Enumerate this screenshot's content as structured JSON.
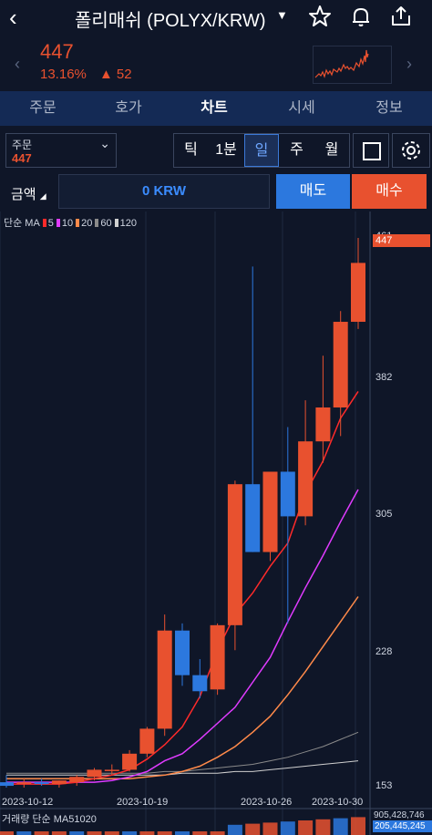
{
  "header": {
    "back_icon": "chevron-left-icon",
    "title": "폴리매쉬 (POLYX/KRW)"
  },
  "price": {
    "current": "447",
    "change_pct": "13.16%",
    "change_abs": "52",
    "color_up": "#e8512f"
  },
  "tabs": [
    {
      "label": "주문"
    },
    {
      "label": "호가"
    },
    {
      "label": "차트"
    },
    {
      "label": "시세"
    },
    {
      "label": "정보"
    }
  ],
  "active_tab": "차트",
  "order_box": {
    "label": "주문",
    "value": "447"
  },
  "periods": [
    {
      "label": "틱"
    },
    {
      "label": "1분"
    },
    {
      "label": "일"
    },
    {
      "label": "주"
    },
    {
      "label": "월"
    }
  ],
  "selected_period": "일",
  "amount": {
    "label": "금액",
    "value": "0 KRW"
  },
  "actions": {
    "sell": "매도",
    "buy": "매수"
  },
  "legend": {
    "prefix": "단순 MA",
    "items": [
      {
        "label": "5",
        "color": "#ff2a2a"
      },
      {
        "label": "10",
        "color": "#e03bff"
      },
      {
        "label": "20",
        "color": "#ff8a4a"
      },
      {
        "label": "60",
        "color": "#8a8a8a"
      },
      {
        "label": "120",
        "color": "#d0d0d0"
      }
    ]
  },
  "volume_legend": {
    "prefix": "거래량 단순 MA",
    "items": [
      {
        "label": "5",
        "color": "#ff2a2a"
      },
      {
        "label": "10",
        "color": "#2c5bff"
      },
      {
        "label": "20",
        "color": "#ff9a1a"
      }
    ],
    "tick_top": "905,428,746",
    "tick_current": "205,445,245"
  },
  "chart_data": {
    "type": "candlestick",
    "y_ticks": [
      "461",
      "382",
      "305",
      "228",
      "153"
    ],
    "ylim": [
      153,
      461
    ],
    "current_price_label": "447",
    "x_labels": [
      "2023-10-12",
      "2023-10-19",
      "2023-10-26",
      "2023-10-30"
    ],
    "up_color": "#e8512f",
    "down_color": "#2c78de",
    "candles": [
      {
        "o": 156,
        "h": 160,
        "l": 153,
        "c": 154
      },
      {
        "o": 155,
        "h": 158,
        "l": 153,
        "c": 156
      },
      {
        "o": 156,
        "h": 158,
        "l": 154,
        "c": 155
      },
      {
        "o": 155,
        "h": 157,
        "l": 153,
        "c": 157
      },
      {
        "o": 156,
        "h": 160,
        "l": 154,
        "c": 159
      },
      {
        "o": 159,
        "h": 164,
        "l": 157,
        "c": 163
      },
      {
        "o": 163,
        "h": 166,
        "l": 160,
        "c": 163
      },
      {
        "o": 163,
        "h": 174,
        "l": 162,
        "c": 172
      },
      {
        "o": 172,
        "h": 187,
        "l": 170,
        "c": 186
      },
      {
        "o": 186,
        "h": 250,
        "l": 182,
        "c": 241
      },
      {
        "o": 241,
        "h": 245,
        "l": 210,
        "c": 216
      },
      {
        "o": 216,
        "h": 225,
        "l": 203,
        "c": 207
      },
      {
        "o": 208,
        "h": 245,
        "l": 205,
        "c": 244
      },
      {
        "o": 244,
        "h": 325,
        "l": 230,
        "c": 323
      },
      {
        "o": 323,
        "h": 445,
        "l": 285,
        "c": 285
      },
      {
        "o": 285,
        "h": 330,
        "l": 280,
        "c": 330
      },
      {
        "o": 330,
        "h": 355,
        "l": 245,
        "c": 305
      },
      {
        "o": 305,
        "h": 370,
        "l": 300,
        "c": 347
      },
      {
        "o": 347,
        "h": 395,
        "l": 335,
        "c": 366
      },
      {
        "o": 366,
        "h": 420,
        "l": 350,
        "c": 414
      },
      {
        "o": 414,
        "h": 461,
        "l": 410,
        "c": 447
      }
    ],
    "ma5": [
      155,
      155,
      155,
      155,
      156,
      158,
      160,
      163,
      169,
      177,
      187,
      204,
      230,
      250,
      262,
      277,
      290,
      318,
      336,
      360,
      375
    ],
    "ma10": [
      156,
      156,
      156,
      156,
      156,
      156,
      157,
      159,
      162,
      168,
      172,
      180,
      189,
      198,
      212,
      226,
      246,
      265,
      283,
      302,
      320
    ],
    "ma20": [
      158,
      158,
      158,
      158,
      158,
      158,
      158,
      158,
      159,
      160,
      162,
      165,
      170,
      176,
      184,
      193,
      205,
      218,
      232,
      246,
      260
    ],
    "ma60": [
      161,
      161,
      161,
      161,
      161,
      161,
      161,
      161,
      161,
      162,
      162,
      163,
      164,
      165,
      166,
      168,
      170,
      173,
      176,
      180,
      184
    ],
    "ma120": [
      160,
      160,
      160,
      160,
      160,
      160,
      160,
      160,
      160,
      160,
      161,
      161,
      161,
      162,
      162,
      163,
      164,
      165,
      166,
      167,
      168
    ]
  }
}
